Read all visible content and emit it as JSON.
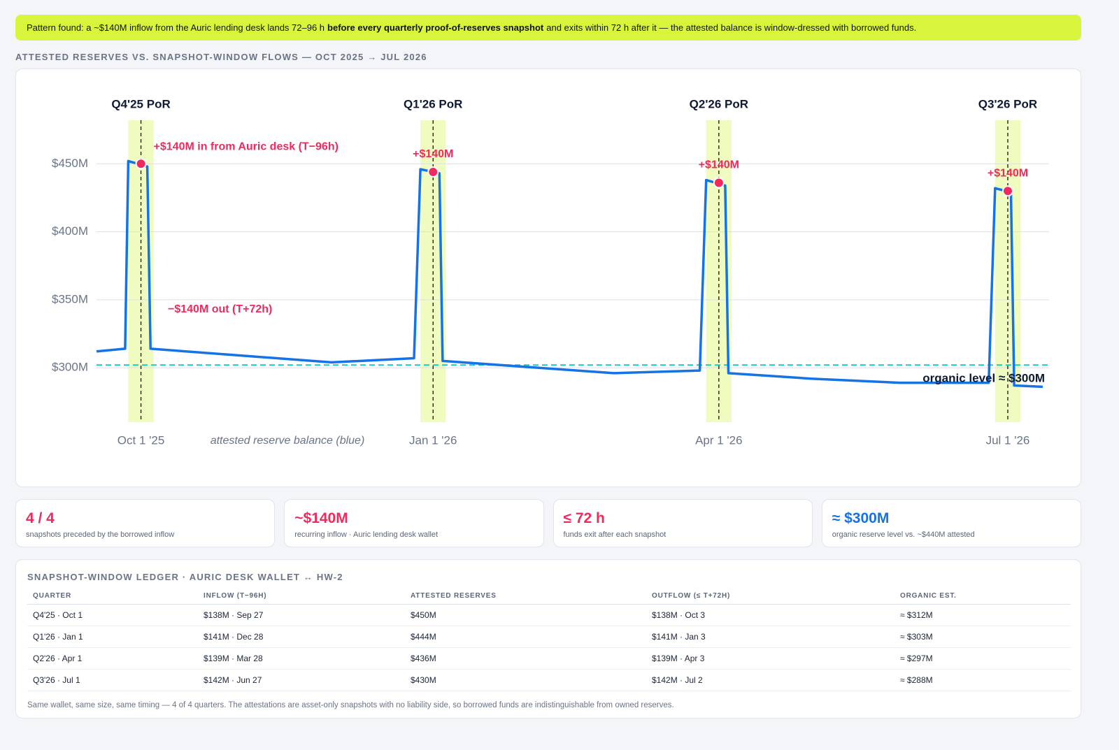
{
  "banner": {
    "before": "Pattern found: a ~$140M inflow from the Auric lending desk lands 72–96 h",
    "emphasis": "before every quarterly proof-of-reserves snapshot",
    "after": "and exits within 72 h after it — the attested balance is window-dressed with borrowed funds."
  },
  "chart_title": "ATTESTED RESERVES VS. SNAPSHOT-WINDOW FLOWS — OCT 2025 → JUL 2026",
  "chart_data": {
    "type": "line",
    "xlim": [
      "2025-09-17",
      "2026-07-14"
    ],
    "xticks": [
      {
        "value": "2025-10-01",
        "label": "Oct 1 '25"
      },
      {
        "value": "2026-01-01",
        "label": "Jan 1 '26"
      },
      {
        "value": "2026-04-01",
        "label": "Apr 1 '26"
      },
      {
        "value": "2026-07-01",
        "label": "Jul 1 '26"
      }
    ],
    "ylim": [
      260,
      482
    ],
    "yticks": [
      {
        "value": 300,
        "label": "$300M"
      },
      {
        "value": 350,
        "label": "$350M"
      },
      {
        "value": 400,
        "label": "$400M"
      },
      {
        "value": 450,
        "label": "$450M"
      }
    ],
    "grid": true,
    "series": [
      {
        "name": "attested reserve balance (blue)",
        "color": "#1473e6",
        "x": [
          "2025-09-17",
          "2025-09-26",
          "2025-09-27",
          "2025-10-03",
          "2025-10-04",
          "2025-11-30",
          "2025-12-26",
          "2025-12-28",
          "2026-01-03",
          "2026-01-04",
          "2026-02-27",
          "2026-03-26",
          "2026-03-28",
          "2026-04-03",
          "2026-04-04",
          "2026-04-30",
          "2026-05-28",
          "2026-06-25",
          "2026-06-27",
          "2026-07-02",
          "2026-07-03",
          "2026-07-12"
        ],
        "values": [
          312,
          314,
          452,
          448,
          314,
          304,
          307,
          446,
          443,
          305,
          296,
          298,
          438,
          434,
          296,
          292,
          289,
          289,
          432,
          429,
          287,
          286
        ]
      }
    ],
    "snapshots": [
      {
        "label": "Q4'25 PoR",
        "date": "2025-10-01",
        "window": [
          "2025-09-27",
          "2025-10-05"
        ],
        "value": 450,
        "annotation": "+$140M in from Auric desk (T−96h)"
      },
      {
        "label": "Q1'26 PoR",
        "date": "2026-01-01",
        "window": [
          "2025-12-28",
          "2026-01-05"
        ],
        "value": 444,
        "annotation": "+$140M"
      },
      {
        "label": "Q2'26 PoR",
        "date": "2026-04-01",
        "window": [
          "2026-03-28",
          "2026-04-05"
        ],
        "value": 436,
        "annotation": "+$140M"
      },
      {
        "label": "Q3'26 PoR",
        "date": "2026-07-01",
        "window": [
          "2026-06-27",
          "2026-07-05"
        ],
        "value": 430,
        "annotation": "+$140M"
      }
    ],
    "marker_color": "#ef2a5e",
    "window_color": "#f0fbbf",
    "outflow_annotation": "−$140M out (T+72h)",
    "reference": {
      "label": "organic level ≈ $300M",
      "value": 302,
      "color": "#1fc6c6"
    }
  },
  "cards": [
    {
      "value": "4 / 4",
      "caption": "snapshots preceded by the borrowed inflow"
    },
    {
      "value": "~$140M",
      "caption": "recurring inflow · Auric lending desk wallet"
    },
    {
      "value": "≤ 72 h",
      "caption": "funds exit after each snapshot"
    },
    {
      "value": "≈ $300M",
      "caption": "organic reserve level vs. ~$440M attested"
    }
  ],
  "table": {
    "title": "SNAPSHOT-WINDOW LEDGER · AURIC DESK WALLET ↔ HW-2",
    "columns": [
      "QUARTER",
      "INFLOW (T−96H)",
      "ATTESTED RESERVES",
      "OUTFLOW (≤ T+72H)",
      "ORGANIC EST."
    ],
    "rows": [
      [
        "Q4'25 · Oct 1",
        "$138M · Sep 27",
        "$450M",
        "$138M · Oct 3",
        "≈ $312M"
      ],
      [
        "Q1'26 · Jan 1",
        "$141M · Dec 28",
        "$444M",
        "$141M · Jan 3",
        "≈ $303M"
      ],
      [
        "Q2'26 · Apr 1",
        "$139M · Mar 28",
        "$436M",
        "$139M · Apr 3",
        "≈ $297M"
      ],
      [
        "Q3'26 · Jul 1",
        "$142M · Jun 27",
        "$430M",
        "$142M · Jul 2",
        "≈ $288M"
      ]
    ],
    "footnote": "Same wallet, same size, same timing — 4 of 4 quarters. The attestations are asset-only snapshots with no liability side, so borrowed funds are indistinguishable from owned reserves."
  }
}
